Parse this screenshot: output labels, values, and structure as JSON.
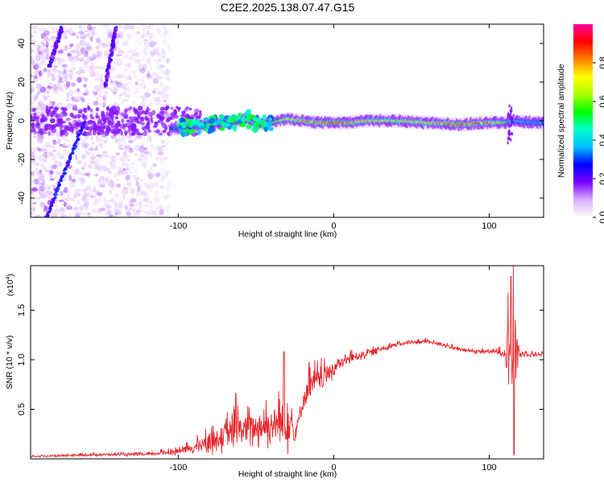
{
  "title": "C2E2.2025.138.07.47.G15",
  "colors": {
    "snr_line": "#e8262a",
    "axis": "#000000",
    "background": "#ffffff"
  },
  "chart_data": [
    {
      "type": "heatmap",
      "title": "C2E2.2025.138.07.47.G15",
      "xlabel": "Height of straight line (km)",
      "ylabel": "Frequency (Hz)",
      "xlim": [
        -195,
        135
      ],
      "ylim": [
        -50,
        50
      ],
      "x_ticks": [
        -100,
        0,
        100
      ],
      "x_tick_labels": [
        "-100",
        "0",
        "100"
      ],
      "y_ticks": [
        -40,
        -20,
        0,
        20,
        40
      ],
      "y_tick_labels": [
        "-40",
        "-20",
        "0",
        "20",
        "40"
      ],
      "colorbar": {
        "label": "Normalized spectral amplitude",
        "range": [
          0,
          1
        ],
        "ticks": [
          0.0,
          0.2,
          0.4,
          0.6,
          0.8
        ],
        "tick_labels": [
          "0.0",
          "0.2",
          "0.4",
          "0.6",
          "0.8"
        ],
        "colormap": [
          "#ffffff",
          "#d8b0ff",
          "#7a00ff",
          "#0000ff",
          "#00bfff",
          "#00ffcc",
          "#00ff00",
          "#aaff00",
          "#ffff00",
          "#ff8000",
          "#ff0000",
          "#ff00a0"
        ]
      },
      "features": [
        {
          "name": "main trace",
          "x": [
            -105,
            -95,
            -80,
            -70,
            -60,
            -55,
            -50,
            -40,
            -35,
            -30,
            -20,
            -10,
            0,
            10,
            20,
            40,
            60,
            80,
            100,
            110,
            115,
            130
          ],
          "y": [
            -4,
            -3,
            -2,
            -1,
            0,
            1,
            -2,
            -1,
            0,
            1,
            0,
            -1,
            -1,
            -1,
            0,
            0,
            -1,
            -2,
            -1,
            -1,
            0,
            -1
          ],
          "amp": [
            0.3,
            0.35,
            0.45,
            0.5,
            0.5,
            0.45,
            0.5,
            0.55,
            0.6,
            0.7,
            0.8,
            0.85,
            0.9,
            0.85,
            0.75,
            0.7,
            0.75,
            0.9,
            0.8,
            0.6,
            0.4,
            0.35
          ]
        },
        {
          "name": "diagonal streak",
          "x0": -185,
          "y0": -50,
          "x1": -160,
          "y1": 0,
          "amp": 0.25
        },
        {
          "name": "upper streak left",
          "x0": -183,
          "y0": 28,
          "x1": -175,
          "y1": 48,
          "amp": 0.2
        },
        {
          "name": "upper streak right",
          "x0": -147,
          "y0": 18,
          "x1": -140,
          "y1": 48,
          "amp": 0.2
        }
      ],
      "noise_extent_x": [
        -195,
        -105
      ]
    },
    {
      "type": "line",
      "xlabel": "Height of straight line (km)",
      "ylabel": "SNR (10 * v/v)",
      "scale_label": "(x10",
      "scale_exponent": "4",
      "scale_close": ")",
      "xlim": [
        -195,
        135
      ],
      "ylim": [
        0,
        1.95
      ],
      "x_ticks": [
        -100,
        0,
        100
      ],
      "x_tick_labels": [
        "-100",
        "0",
        "100"
      ],
      "y_ticks": [
        0.5,
        1.0,
        1.5
      ],
      "y_tick_labels": [
        "0.5",
        "1.0",
        "1.5"
      ],
      "envelope": {
        "x": [
          -195,
          -150,
          -120,
          -100,
          -90,
          -80,
          -70,
          -60,
          -50,
          -40,
          -32,
          -28,
          -25,
          -20,
          -15,
          -10,
          -5,
          0,
          10,
          20,
          30,
          40,
          50,
          60,
          70,
          80,
          90,
          100,
          110,
          113,
          115,
          117,
          120,
          130,
          135
        ],
        "y": [
          0.02,
          0.04,
          0.04,
          0.07,
          0.1,
          0.15,
          0.2,
          0.25,
          0.28,
          0.3,
          0.3,
          0.35,
          0.2,
          0.55,
          0.7,
          0.75,
          0.8,
          0.9,
          1.0,
          1.05,
          1.1,
          1.15,
          1.17,
          1.18,
          1.15,
          1.1,
          1.08,
          1.08,
          1.06,
          1.05,
          1.05,
          1.05,
          1.05,
          1.05,
          1.05
        ],
        "jitter": [
          0.01,
          0.02,
          0.02,
          0.05,
          0.08,
          0.15,
          0.2,
          0.25,
          0.25,
          0.3,
          0.4,
          0.45,
          0.1,
          0.2,
          0.2,
          0.2,
          0.15,
          0.12,
          0.08,
          0.06,
          0.04,
          0.03,
          0.03,
          0.03,
          0.03,
          0.03,
          0.03,
          0.03,
          0.06,
          0.7,
          0.85,
          0.5,
          0.05,
          0.03,
          0.03
        ]
      },
      "peaks": [
        {
          "x": -32,
          "y": 1.08
        },
        {
          "x": -63,
          "y": 0.66
        },
        {
          "x": -16,
          "y": 0.97
        },
        {
          "x": 114,
          "y": 1.84
        },
        {
          "x": 116,
          "y": 0.04
        }
      ]
    }
  ]
}
